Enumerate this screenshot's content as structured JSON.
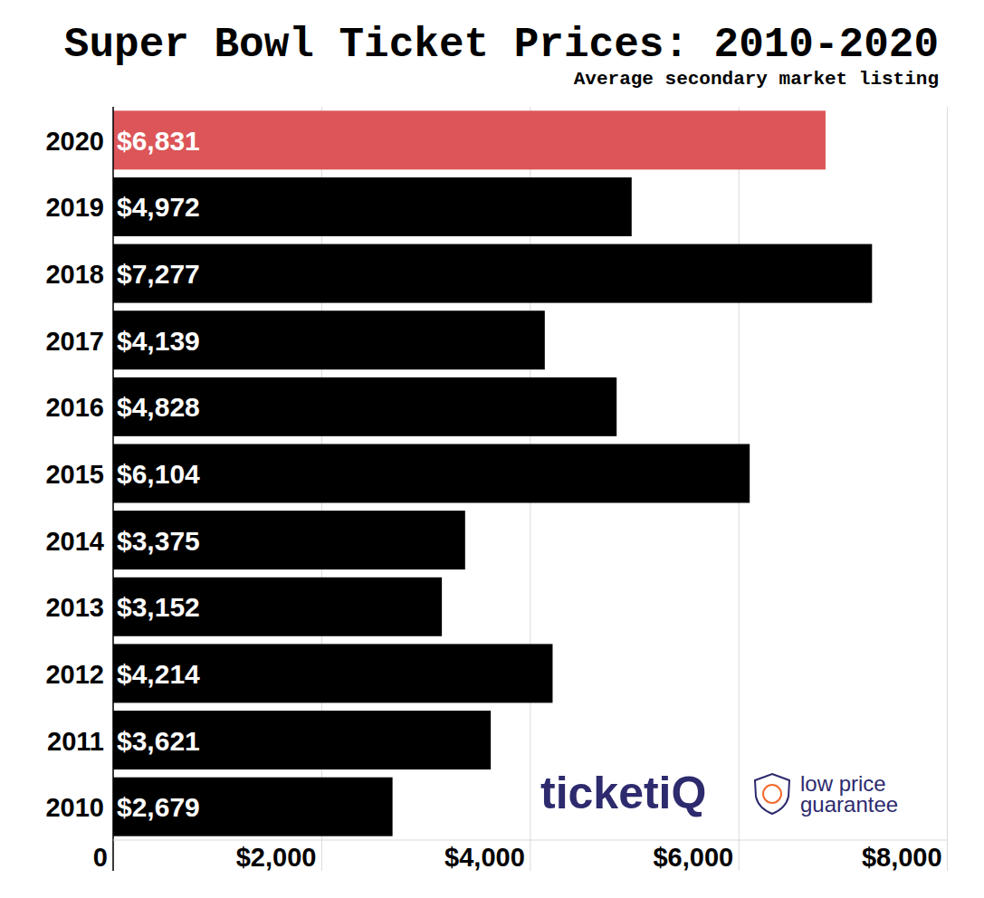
{
  "chart_data": {
    "type": "bar",
    "orientation": "horizontal",
    "title": "Super Bowl Ticket Prices: 2010-2020",
    "subtitle": "Average secondary market listing",
    "categories": [
      "2020",
      "2019",
      "2018",
      "2017",
      "2016",
      "2015",
      "2014",
      "2013",
      "2012",
      "2011",
      "2010"
    ],
    "values": [
      6831,
      4972,
      7277,
      4139,
      4828,
      6104,
      3375,
      3152,
      4214,
      3621,
      2679
    ],
    "value_labels": [
      "$6,831",
      "$4,972",
      "$7,277",
      "$4,139",
      "$4,828",
      "$6,104",
      "$3,375",
      "$3,152",
      "$4,214",
      "$3,621",
      "$2,679"
    ],
    "colors": [
      "#dc5558",
      "#000000",
      "#000000",
      "#000000",
      "#000000",
      "#000000",
      "#000000",
      "#000000",
      "#000000",
      "#000000",
      "#000000"
    ],
    "xlim": [
      0,
      8000
    ],
    "xticks": [
      0,
      {
        "value": 2000,
        "label": "$2,000"
      },
      {
        "value": 4000,
        "label": "$4,000"
      },
      {
        "value": 6000,
        "label": "$6,000"
      },
      {
        "value": 8000,
        "label": "$8,000"
      }
    ],
    "grid": true,
    "data_labels": true,
    "annotations": [
      "ticketiQ",
      "low price",
      "guarantee"
    ]
  }
}
